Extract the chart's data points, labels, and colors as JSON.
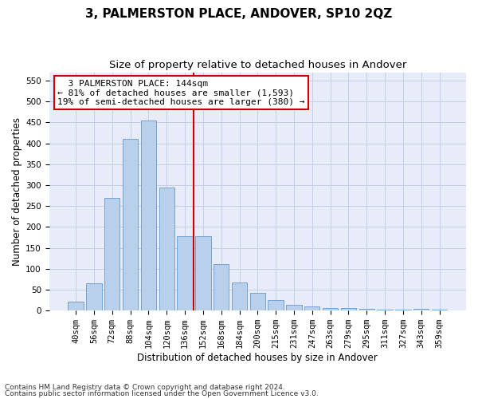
{
  "title": "3, PALMERSTON PLACE, ANDOVER, SP10 2QZ",
  "subtitle": "Size of property relative to detached houses in Andover",
  "xlabel": "Distribution of detached houses by size in Andover",
  "ylabel": "Number of detached properties",
  "footnote1": "Contains HM Land Registry data © Crown copyright and database right 2024.",
  "footnote2": "Contains public sector information licensed under the Open Government Licence v3.0.",
  "annotation_line1": "  3 PALMERSTON PLACE: 144sqm  ",
  "annotation_line2": "← 81% of detached houses are smaller (1,593)",
  "annotation_line3": "19% of semi-detached houses are larger (380) →",
  "bar_color": "#b8d0ea",
  "bar_edge_color": "#6699cc",
  "grid_color": "#c8cce8",
  "vline_color": "#cc0000",
  "categories": [
    "40sqm",
    "56sqm",
    "72sqm",
    "88sqm",
    "104sqm",
    "120sqm",
    "136sqm",
    "152sqm",
    "168sqm",
    "184sqm",
    "200sqm",
    "215sqm",
    "231sqm",
    "247sqm",
    "263sqm",
    "279sqm",
    "295sqm",
    "311sqm",
    "327sqm",
    "343sqm",
    "359sqm"
  ],
  "values": [
    22,
    65,
    270,
    410,
    455,
    295,
    178,
    178,
    112,
    67,
    43,
    25,
    14,
    10,
    6,
    6,
    4,
    2,
    2,
    5,
    2
  ],
  "vline_x_index": 6.5,
  "ylim": [
    0,
    570
  ],
  "yticks": [
    0,
    50,
    100,
    150,
    200,
    250,
    300,
    350,
    400,
    450,
    500,
    550
  ],
  "background_color": "#e8ecf8",
  "title_fontsize": 11,
  "subtitle_fontsize": 9.5,
  "axis_label_fontsize": 8.5,
  "tick_fontsize": 7.5,
  "annotation_fontsize": 8,
  "footnote_fontsize": 6.5
}
